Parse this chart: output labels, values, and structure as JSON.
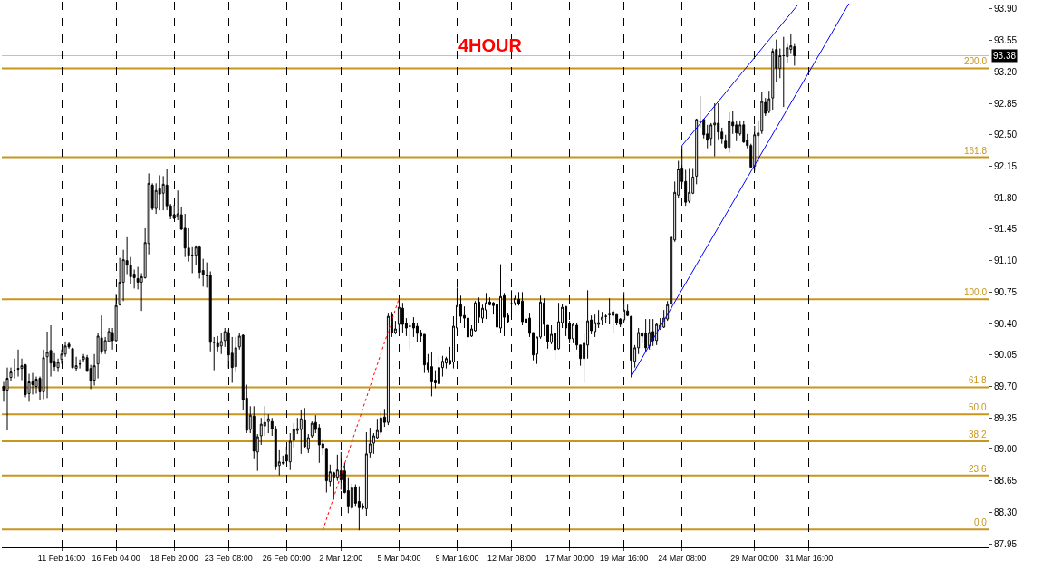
{
  "chart_data": {
    "type": "candlestick",
    "title": "4HOUR",
    "color": "#000000",
    "categories": [
      null,
      null,
      null,
      null,
      null,
      null,
      null,
      null,
      null,
      null,
      null,
      null,
      null,
      null,
      null,
      null,
      "11 Feb 16:00",
      null,
      null,
      null,
      null,
      null,
      null,
      null,
      null,
      null,
      null,
      null,
      null,
      null,
      null,
      "16 Feb 04:00",
      null,
      null,
      null,
      null,
      null,
      null,
      null,
      null,
      null,
      null,
      null,
      null,
      null,
      null,
      null,
      "18 Feb 20:00",
      null,
      null,
      null,
      null,
      null,
      null,
      null,
      null,
      null,
      null,
      null,
      null,
      null,
      null,
      "23 Feb 08:00",
      null,
      null,
      null,
      null,
      null,
      null,
      null,
      null,
      null,
      null,
      null,
      null,
      null,
      null,
      null,
      "26 Feb 00:00",
      null,
      null,
      null,
      null,
      null,
      null,
      null,
      null,
      null,
      null,
      null,
      null,
      null,
      null,
      "2 Mar 12:00",
      null,
      null,
      null,
      null,
      null,
      null,
      null,
      null,
      null,
      null,
      null,
      null,
      null,
      null,
      null,
      "5 Mar 04:00",
      null,
      null,
      null,
      null,
      null,
      null,
      null,
      null,
      null,
      null,
      null,
      null,
      null,
      null,
      null,
      "9 Mar 16:00",
      null,
      null,
      null,
      null,
      null,
      null,
      null,
      null,
      null,
      null,
      null,
      null,
      null,
      null,
      "12 Mar 08:00",
      null,
      null,
      null,
      null,
      null,
      null,
      null,
      null,
      null,
      null,
      null,
      null,
      null,
      null,
      null,
      "17 Mar 00:00",
      null,
      null,
      null,
      null,
      null,
      null,
      null,
      null,
      null,
      null,
      null,
      null,
      null,
      null,
      "19 Mar 16:00",
      null,
      null,
      null,
      null,
      null,
      null,
      null,
      null,
      null,
      null,
      null,
      null,
      null,
      null,
      null,
      "24 Mar 08:00",
      null,
      null,
      null,
      null,
      null,
      null,
      null,
      null,
      null,
      null,
      null,
      null,
      null,
      null,
      null,
      null,
      null,
      null,
      null,
      "29 Mar 00:00",
      null,
      null,
      null,
      null,
      null,
      null,
      null,
      null,
      null,
      null,
      null,
      null,
      null,
      null,
      "31 Mar 16:00",
      null,
      null,
      null,
      null,
      null,
      null,
      null,
      null,
      null,
      null,
      null,
      null,
      null,
      null,
      null,
      null,
      null,
      null,
      null,
      null,
      null,
      null,
      null,
      null,
      null,
      null,
      null,
      null,
      null,
      null,
      null,
      null,
      null,
      null,
      null,
      null,
      null,
      null,
      null,
      null,
      null,
      null,
      null,
      null,
      null,
      null,
      null,
      null,
      null
    ],
    "ohlc": [
      [
        89.7,
        89.75,
        89.53,
        89.65
      ],
      [
        89.66,
        89.91,
        89.21,
        89.79
      ],
      [
        89.8,
        89.91,
        89.76,
        89.86
      ],
      [
        89.88,
        90.01,
        89.79,
        89.88
      ],
      [
        89.89,
        90.11,
        89.81,
        89.9
      ],
      [
        89.9,
        90.01,
        89.77,
        89.93
      ],
      [
        89.94,
        89.95,
        89.58,
        89.61
      ],
      [
        89.62,
        89.84,
        89.53,
        89.75
      ],
      [
        89.75,
        89.85,
        89.61,
        89.72
      ],
      [
        89.7,
        89.81,
        89.62,
        89.78
      ],
      [
        89.79,
        89.81,
        89.55,
        89.64
      ],
      [
        89.64,
        90.11,
        89.56,
        90.02
      ],
      [
        90.03,
        90.31,
        89.57,
        90.08
      ],
      [
        90.1,
        90.38,
        89.81,
        89.96
      ],
      [
        89.98,
        90.07,
        89.87,
        89.92
      ],
      [
        89.91,
        90.01,
        89.86,
        89.97
      ],
      [
        90.0,
        90.11,
        89.95,
        90.06
      ],
      [
        90.06,
        90.2,
        90.03,
        90.15
      ],
      [
        90.17,
        90.19,
        90.12,
        90.14
      ],
      [
        90.12,
        90.13,
        89.9,
        89.91
      ],
      [
        89.9,
        90.03,
        89.87,
        89.93
      ],
      [
        89.95,
        90.0,
        89.9,
        89.95
      ],
      [
        90.0,
        90.06,
        89.97,
        90.03
      ],
      [
        90.02,
        90.05,
        89.86,
        89.87
      ],
      [
        89.9,
        89.94,
        89.67,
        89.76
      ],
      [
        89.77,
        90.06,
        89.71,
        89.93
      ],
      [
        89.95,
        90.3,
        89.79,
        90.26
      ],
      [
        90.24,
        90.49,
        90.06,
        90.09
      ],
      [
        90.1,
        90.25,
        90.06,
        90.21
      ],
      [
        90.2,
        90.35,
        90.19,
        90.31
      ],
      [
        90.3,
        90.35,
        90.11,
        90.21
      ],
      [
        90.21,
        90.72,
        90.19,
        90.6
      ],
      [
        90.61,
        91.13,
        90.6,
        90.86
      ],
      [
        90.86,
        91.22,
        90.65,
        91.11
      ],
      [
        91.1,
        91.36,
        90.95,
        91.05
      ],
      [
        91.05,
        91.14,
        90.84,
        90.92
      ],
      [
        90.95,
        91.0,
        90.79,
        90.91
      ],
      [
        90.9,
        91.03,
        90.78,
        90.86
      ],
      [
        90.86,
        90.96,
        90.54,
        90.92
      ],
      [
        90.91,
        91.46,
        90.9,
        91.3
      ],
      [
        91.29,
        92.07,
        91.17,
        91.96
      ],
      [
        91.94,
        91.96,
        91.66,
        91.68
      ],
      [
        91.68,
        91.96,
        91.62,
        91.88
      ],
      [
        91.9,
        92.05,
        91.66,
        91.84
      ],
      [
        91.85,
        92.04,
        91.66,
        91.95
      ],
      [
        91.94,
        92.12,
        91.66,
        91.71
      ],
      [
        91.71,
        91.73,
        91.56,
        91.6
      ],
      [
        91.61,
        91.72,
        91.56,
        91.57
      ],
      [
        91.59,
        91.88,
        91.55,
        91.62
      ],
      [
        91.61,
        91.7,
        91.44,
        91.45
      ],
      [
        91.46,
        91.62,
        91.14,
        91.24
      ],
      [
        91.24,
        91.46,
        91.09,
        91.16
      ],
      [
        91.16,
        91.25,
        90.96,
        91.16
      ],
      [
        91.16,
        91.27,
        91.05,
        91.25
      ],
      [
        91.25,
        91.27,
        90.9,
        90.97
      ],
      [
        90.99,
        91.12,
        90.81,
        90.94
      ],
      [
        90.93,
        91.08,
        90.8,
        90.93
      ],
      [
        90.94,
        90.98,
        90.09,
        90.19
      ],
      [
        90.19,
        90.25,
        89.88,
        90.19
      ],
      [
        90.18,
        90.26,
        90.09,
        90.14
      ],
      [
        90.15,
        90.29,
        90.06,
        90.2
      ],
      [
        90.21,
        90.35,
        90.14,
        90.31
      ],
      [
        90.3,
        90.33,
        89.9,
        90.05
      ],
      [
        90.07,
        90.25,
        89.74,
        89.91
      ],
      [
        89.92,
        90.25,
        89.86,
        90.13
      ],
      [
        90.14,
        90.3,
        90.11,
        90.26
      ],
      [
        90.27,
        90.28,
        89.44,
        89.55
      ],
      [
        89.57,
        89.72,
        89.18,
        89.21
      ],
      [
        89.22,
        89.48,
        89.18,
        89.38
      ],
      [
        89.37,
        89.48,
        88.89,
        88.98
      ],
      [
        88.97,
        89.17,
        88.76,
        89.14
      ],
      [
        89.15,
        89.35,
        89.05,
        89.28
      ],
      [
        89.26,
        89.48,
        89.15,
        89.3
      ],
      [
        89.31,
        89.39,
        89.18,
        89.34
      ],
      [
        89.31,
        89.35,
        89.15,
        89.23
      ],
      [
        89.23,
        89.26,
        88.77,
        88.81
      ],
      [
        88.82,
        88.99,
        88.71,
        88.86
      ],
      [
        88.85,
        88.93,
        88.83,
        88.85
      ],
      [
        88.94,
        89.03,
        88.86,
        88.87
      ],
      [
        88.86,
        89.18,
        88.77,
        89.09
      ],
      [
        89.1,
        89.29,
        89.01,
        89.22
      ],
      [
        89.21,
        89.35,
        89.17,
        89.23
      ],
      [
        89.22,
        89.44,
        88.95,
        89.34
      ],
      [
        89.33,
        89.46,
        89.01,
        89.03
      ],
      [
        89.0,
        89.17,
        88.96,
        89.13
      ],
      [
        89.15,
        89.31,
        89.13,
        89.29
      ],
      [
        89.3,
        89.38,
        89.18,
        89.22
      ],
      [
        89.24,
        89.28,
        88.85,
        89.05
      ],
      [
        89.06,
        89.12,
        88.94,
        89.01
      ],
      [
        89.0,
        89.01,
        88.52,
        88.65
      ],
      [
        88.64,
        88.83,
        88.59,
        88.75
      ],
      [
        88.74,
        88.75,
        88.44,
        88.68
      ],
      [
        88.68,
        88.94,
        88.65,
        88.77
      ],
      [
        88.76,
        88.97,
        88.55,
        88.66
      ],
      [
        88.76,
        88.85,
        88.51,
        88.52
      ],
      [
        88.54,
        88.68,
        88.29,
        88.36
      ],
      [
        88.35,
        88.62,
        88.33,
        88.57
      ],
      [
        88.58,
        88.61,
        88.36,
        88.4
      ],
      [
        88.42,
        88.59,
        88.1,
        88.35
      ],
      [
        88.37,
        88.4,
        88.33,
        88.35
      ],
      [
        88.34,
        89.19,
        88.26,
        88.95
      ],
      [
        88.96,
        89.24,
        88.91,
        89.06
      ],
      [
        89.07,
        89.18,
        88.95,
        89.15
      ],
      [
        89.13,
        89.34,
        89.11,
        89.21
      ],
      [
        89.19,
        89.42,
        89.16,
        89.35
      ],
      [
        89.36,
        89.45,
        89.25,
        89.3
      ],
      [
        89.3,
        90.51,
        89.27,
        90.48
      ],
      [
        90.5,
        90.53,
        90.25,
        90.3
      ],
      [
        90.3,
        90.43,
        90.28,
        90.34
      ],
      [
        90.39,
        90.63,
        90.31,
        90.58
      ],
      [
        90.57,
        90.63,
        90.3,
        90.39
      ],
      [
        90.4,
        90.46,
        90.26,
        90.35
      ],
      [
        90.37,
        90.42,
        90.11,
        90.37
      ],
      [
        90.4,
        90.47,
        90.25,
        90.35
      ],
      [
        90.37,
        90.41,
        90.19,
        90.29
      ],
      [
        90.3,
        90.33,
        90.19,
        90.26
      ],
      [
        90.28,
        90.28,
        89.85,
        89.94
      ],
      [
        89.96,
        90.06,
        89.85,
        89.89
      ],
      [
        89.92,
        90.08,
        89.59,
        89.75
      ],
      [
        89.77,
        89.88,
        89.68,
        89.74
      ],
      [
        89.73,
        90.03,
        89.72,
        89.91
      ],
      [
        89.91,
        90.04,
        89.81,
        89.98
      ],
      [
        89.96,
        90.03,
        89.9,
        90.01
      ],
      [
        89.99,
        90.14,
        89.94,
        89.95
      ],
      [
        89.97,
        90.48,
        89.9,
        90.37
      ],
      [
        90.35,
        90.8,
        90.33,
        90.6
      ],
      [
        90.61,
        90.71,
        90.4,
        90.48
      ],
      [
        90.49,
        90.59,
        90.35,
        90.46
      ],
      [
        90.46,
        90.5,
        90.17,
        90.25
      ],
      [
        90.26,
        90.38,
        90.25,
        90.34
      ],
      [
        90.32,
        90.65,
        90.31,
        90.63
      ],
      [
        90.64,
        90.69,
        90.41,
        90.47
      ],
      [
        90.46,
        90.61,
        90.4,
        90.57
      ],
      [
        90.55,
        90.74,
        90.45,
        90.63
      ],
      [
        90.64,
        90.69,
        90.6,
        90.61
      ],
      [
        90.63,
        90.64,
        90.5,
        90.6
      ],
      [
        90.61,
        90.65,
        90.12,
        90.36
      ],
      [
        90.35,
        91.06,
        90.3,
        90.7
      ],
      [
        90.71,
        90.74,
        90.26,
        90.47
      ],
      [
        90.49,
        90.52,
        90.4,
        90.42
      ],
      [
        90.62,
        90.77,
        90.51,
        90.62
      ],
      [
        90.63,
        90.71,
        90.6,
        90.68
      ],
      [
        90.67,
        90.75,
        90.6,
        90.62
      ],
      [
        90.65,
        90.75,
        90.38,
        90.42
      ],
      [
        90.41,
        90.47,
        90.31,
        90.45
      ],
      [
        90.46,
        90.51,
        90.25,
        90.29
      ],
      [
        90.3,
        90.3,
        89.99,
        90.05
      ],
      [
        90.06,
        90.25,
        89.95,
        90.25
      ],
      [
        90.25,
        90.71,
        90.23,
        90.64
      ],
      [
        90.63,
        90.68,
        90.26,
        90.39
      ],
      [
        90.38,
        90.38,
        90.12,
        90.2
      ],
      [
        90.19,
        90.38,
        90.17,
        90.28
      ],
      [
        90.29,
        90.29,
        89.99,
        90.11
      ],
      [
        90.12,
        90.63,
        90.11,
        90.42
      ],
      [
        90.41,
        90.62,
        90.35,
        90.58
      ],
      [
        90.59,
        90.59,
        90.26,
        90.35
      ],
      [
        90.4,
        90.43,
        90.18,
        90.23
      ],
      [
        90.23,
        90.4,
        90.18,
        90.39
      ],
      [
        90.38,
        90.41,
        90.11,
        90.16
      ],
      [
        90.16,
        90.16,
        89.93,
        90.01
      ],
      [
        90.01,
        90.3,
        89.74,
        90.18
      ],
      [
        90.16,
        90.77,
        90.01,
        90.43
      ],
      [
        90.44,
        90.49,
        90.28,
        90.32
      ],
      [
        90.31,
        90.5,
        90.25,
        90.41
      ],
      [
        90.39,
        90.55,
        90.35,
        90.41
      ],
      [
        90.44,
        90.53,
        90.38,
        90.47
      ],
      [
        90.48,
        90.5,
        90.4,
        90.48
      ],
      [
        90.5,
        90.68,
        90.39,
        90.5
      ],
      [
        90.49,
        90.55,
        90.29,
        90.53
      ],
      [
        90.5,
        90.5,
        90.38,
        90.41
      ],
      [
        90.45,
        90.46,
        90.36,
        90.39
      ],
      [
        90.44,
        90.75,
        90.41,
        90.55
      ],
      [
        90.54,
        90.61,
        90.48,
        90.49
      ],
      [
        90.48,
        90.48,
        89.8,
        89.99
      ],
      [
        89.98,
        90.16,
        89.91,
        90.13
      ],
      [
        90.13,
        90.35,
        90.06,
        90.3
      ],
      [
        90.29,
        90.31,
        90.18,
        90.26
      ],
      [
        90.29,
        90.45,
        90.08,
        90.13
      ],
      [
        90.15,
        90.45,
        90.11,
        90.3
      ],
      [
        90.31,
        90.45,
        90.15,
        90.21
      ],
      [
        90.21,
        90.41,
        90.16,
        90.39
      ],
      [
        90.34,
        90.46,
        90.33,
        90.38
      ],
      [
        90.36,
        90.55,
        90.35,
        90.46
      ],
      [
        90.45,
        90.65,
        90.43,
        90.61
      ],
      [
        90.62,
        91.38,
        90.55,
        91.36
      ],
      [
        91.33,
        91.98,
        91.31,
        91.86
      ],
      [
        91.83,
        92.21,
        91.8,
        92.12
      ],
      [
        92.13,
        92.38,
        91.95,
        91.98
      ],
      [
        91.98,
        92.11,
        91.71,
        91.75
      ],
      [
        91.76,
        92.13,
        91.74,
        91.86
      ],
      [
        91.85,
        92.13,
        91.84,
        92.03
      ],
      [
        92.04,
        92.68,
        91.95,
        92.67
      ],
      [
        92.65,
        92.93,
        92.58,
        92.65
      ],
      [
        92.67,
        92.68,
        92.46,
        92.5
      ],
      [
        92.51,
        92.61,
        92.35,
        92.44
      ],
      [
        92.46,
        92.63,
        92.38,
        92.61
      ],
      [
        92.61,
        92.85,
        92.26,
        92.63
      ],
      [
        92.63,
        92.85,
        92.45,
        92.53
      ],
      [
        92.53,
        92.58,
        92.4,
        92.46
      ],
      [
        92.43,
        92.5,
        92.34,
        92.36
      ],
      [
        92.36,
        92.75,
        92.3,
        92.65
      ],
      [
        92.64,
        92.76,
        92.51,
        92.6
      ],
      [
        92.61,
        92.66,
        92.43,
        92.52
      ],
      [
        92.51,
        92.66,
        92.49,
        92.61
      ],
      [
        92.61,
        92.66,
        92.41,
        92.42
      ],
      [
        92.44,
        92.51,
        92.35,
        92.38
      ],
      [
        92.38,
        92.4,
        92.14,
        92.14
      ],
      [
        92.15,
        92.6,
        92.1,
        92.5
      ],
      [
        92.49,
        92.65,
        92.2,
        92.52
      ],
      [
        92.54,
        92.98,
        92.51,
        92.87
      ],
      [
        92.86,
        92.91,
        92.71,
        92.74
      ],
      [
        92.76,
        92.99,
        92.74,
        92.9
      ],
      [
        92.91,
        93.46,
        92.78,
        93.43
      ],
      [
        93.45,
        93.56,
        93.09,
        93.24
      ],
      [
        93.24,
        93.46,
        93.13,
        93.38
      ],
      [
        93.38,
        93.59,
        92.81,
        93.38
      ],
      [
        93.37,
        93.51,
        93.3,
        93.47
      ],
      [
        93.45,
        93.62,
        93.4,
        93.49
      ],
      [
        93.48,
        93.51,
        93.27,
        93.38
      ],
      null,
      null,
      null,
      null,
      null,
      null,
      null,
      null,
      null,
      null,
      null,
      null,
      null,
      null,
      null,
      null,
      null,
      null,
      null,
      null,
      null,
      null,
      null,
      null,
      null,
      null,
      null,
      null,
      null,
      null,
      null,
      null,
      null,
      null,
      null,
      null,
      null,
      null,
      null,
      null,
      null,
      null,
      null,
      null,
      null,
      null,
      null,
      null,
      null,
      null,
      null,
      null,
      null
    ],
    "series": [
      {
        "type": "line",
        "color": "#0000ff",
        "line_style": "solid",
        "values": [
          null,
          null,
          null,
          null,
          null,
          null,
          null,
          null,
          null,
          null,
          null,
          null,
          null,
          null,
          null,
          null,
          null,
          null,
          null,
          null,
          null,
          null,
          null,
          null,
          null,
          null,
          null,
          null,
          null,
          null,
          null,
          null,
          null,
          null,
          null,
          null,
          null,
          null,
          null,
          null,
          null,
          null,
          null,
          null,
          null,
          null,
          null,
          null,
          null,
          null,
          null,
          null,
          null,
          null,
          null,
          null,
          null,
          null,
          null,
          null,
          null,
          null,
          null,
          null,
          null,
          null,
          null,
          null,
          null,
          null,
          null,
          null,
          null,
          null,
          null,
          null,
          null,
          null,
          null,
          null,
          null,
          null,
          null,
          null,
          null,
          null,
          null,
          null,
          null,
          null,
          null,
          null,
          null,
          null,
          null,
          null,
          null,
          null,
          null,
          null,
          null,
          null,
          null,
          null,
          null,
          null,
          null,
          null,
          null,
          null,
          null,
          null,
          null,
          null,
          null,
          null,
          null,
          null,
          null,
          null,
          null,
          null,
          null,
          null,
          null,
          null,
          null,
          null,
          null,
          null,
          null,
          null,
          null,
          null,
          null,
          null,
          null,
          null,
          null,
          null,
          null,
          null,
          null,
          null,
          null,
          null,
          null,
          null,
          null,
          null,
          null,
          null,
          null,
          null,
          null,
          null,
          null,
          null,
          null,
          null,
          null,
          null,
          null,
          null,
          null,
          null,
          null,
          null,
          null,
          null,
          null,
          null,
          null,
          89.81,
          null,
          null,
          null,
          null,
          null,
          null,
          null,
          null,
          null,
          null,
          null,
          null,
          null,
          null,
          null,
          null,
          null,
          null,
          null,
          null,
          null,
          null,
          null,
          null,
          null,
          null,
          null,
          null,
          null,
          null,
          null,
          null,
          null,
          null,
          null,
          null,
          null,
          null,
          null,
          null,
          null,
          null,
          null,
          null,
          null,
          null,
          null,
          null,
          null,
          null,
          null,
          null,
          null,
          null,
          null,
          null,
          null,
          null,
          null,
          93.96,
          null,
          null,
          null,
          null,
          null,
          null,
          null,
          null,
          null,
          null,
          null,
          null,
          null,
          null,
          null,
          null,
          null,
          null,
          null,
          null,
          null,
          null,
          null,
          null,
          null,
          null,
          null,
          null,
          null,
          null,
          null,
          null,
          null,
          null,
          null,
          null,
          null,
          null
        ]
      },
      {
        "type": "line",
        "color": "#0000ff",
        "line_style": "solid",
        "values": [
          null,
          null,
          null,
          null,
          null,
          null,
          null,
          null,
          null,
          null,
          null,
          null,
          null,
          null,
          null,
          null,
          null,
          null,
          null,
          null,
          null,
          null,
          null,
          null,
          null,
          null,
          null,
          null,
          null,
          null,
          null,
          null,
          null,
          null,
          null,
          null,
          null,
          null,
          null,
          null,
          null,
          null,
          null,
          null,
          null,
          null,
          null,
          null,
          null,
          null,
          null,
          null,
          null,
          null,
          null,
          null,
          null,
          null,
          null,
          null,
          null,
          null,
          null,
          null,
          null,
          null,
          null,
          null,
          null,
          null,
          null,
          null,
          null,
          null,
          null,
          null,
          null,
          null,
          null,
          null,
          null,
          null,
          null,
          null,
          null,
          null,
          null,
          null,
          null,
          null,
          null,
          null,
          null,
          null,
          null,
          null,
          null,
          null,
          null,
          null,
          null,
          null,
          null,
          null,
          null,
          null,
          null,
          null,
          null,
          null,
          null,
          null,
          null,
          null,
          null,
          null,
          null,
          null,
          null,
          null,
          null,
          null,
          null,
          null,
          null,
          null,
          null,
          null,
          null,
          null,
          null,
          null,
          null,
          null,
          null,
          null,
          null,
          null,
          null,
          null,
          null,
          null,
          null,
          null,
          null,
          null,
          null,
          null,
          null,
          null,
          null,
          null,
          null,
          null,
          null,
          null,
          null,
          null,
          null,
          null,
          null,
          null,
          null,
          null,
          null,
          null,
          null,
          null,
          null,
          null,
          null,
          null,
          null,
          null,
          null,
          null,
          null,
          null,
          null,
          null,
          null,
          null,
          null,
          null,
          null,
          null,
          null,
          92.38,
          null,
          null,
          null,
          null,
          null,
          null,
          null,
          null,
          null,
          null,
          null,
          null,
          null,
          null,
          null,
          null,
          null,
          null,
          null,
          null,
          null,
          null,
          null,
          null,
          null,
          null,
          null,
          null,
          null,
          null,
          null,
          93.95,
          null,
          null,
          null,
          null,
          null,
          null,
          null,
          null,
          null,
          null,
          null,
          null,
          null,
          null,
          null,
          null,
          null,
          null,
          null,
          null,
          null,
          null,
          null,
          null,
          null,
          null,
          null,
          null,
          null,
          null,
          null,
          null,
          null,
          null,
          null,
          null,
          null,
          null,
          null,
          null,
          null,
          null,
          null,
          null,
          null,
          null,
          null,
          null,
          null,
          null,
          null,
          null
        ]
      },
      {
        "type": "line",
        "color": "#ff0000",
        "line_style": "dotted",
        "values": [
          null,
          null,
          null,
          null,
          null,
          null,
          null,
          null,
          null,
          null,
          null,
          null,
          null,
          null,
          null,
          null,
          null,
          null,
          null,
          null,
          null,
          null,
          null,
          null,
          null,
          null,
          null,
          null,
          null,
          null,
          null,
          null,
          null,
          null,
          null,
          null,
          null,
          null,
          null,
          null,
          null,
          null,
          null,
          null,
          null,
          null,
          null,
          null,
          null,
          null,
          null,
          null,
          null,
          null,
          null,
          null,
          null,
          null,
          null,
          null,
          null,
          null,
          null,
          null,
          null,
          null,
          null,
          null,
          null,
          null,
          null,
          null,
          null,
          null,
          null,
          null,
          null,
          null,
          null,
          null,
          null,
          null,
          null,
          null,
          null,
          null,
          null,
          null,
          88.1,
          null,
          null,
          null,
          null,
          null,
          null,
          null,
          null,
          null,
          null,
          null,
          null,
          null,
          null,
          null,
          null,
          null,
          null,
          null,
          null,
          90.68,
          null,
          null,
          null,
          null,
          null,
          null,
          null,
          null,
          null,
          null,
          null,
          null,
          null,
          null,
          null,
          null,
          null,
          null,
          null,
          null,
          null,
          null,
          null,
          null,
          null,
          null,
          null,
          null,
          null,
          null,
          null,
          null,
          null,
          null,
          null,
          null,
          null,
          null,
          null,
          null,
          null,
          null,
          null,
          null,
          null,
          null,
          null,
          null,
          null,
          null,
          null,
          null,
          null,
          null,
          null,
          null,
          null,
          null,
          null,
          null,
          null,
          null,
          null,
          null,
          null,
          null,
          null,
          null,
          null,
          null,
          null,
          null,
          null,
          null,
          null,
          null,
          null,
          null,
          null,
          null,
          null,
          null,
          null,
          null,
          null,
          null,
          null,
          null,
          null,
          null,
          null,
          null,
          null,
          null,
          null,
          null,
          null,
          null,
          null,
          null,
          null,
          null,
          null,
          null,
          null,
          null,
          null,
          null,
          null,
          null,
          null,
          null,
          null,
          null,
          null,
          null,
          null,
          null,
          null,
          null,
          null,
          null,
          null,
          null,
          null,
          null,
          null,
          null,
          null,
          null,
          null,
          null,
          null,
          null,
          null,
          null,
          null,
          null,
          null,
          null,
          null,
          null,
          null,
          null,
          null,
          null,
          null,
          null,
          null,
          null,
          null,
          null,
          null,
          null,
          null,
          null,
          null,
          null,
          null,
          null,
          null,
          null
        ]
      }
    ],
    "ref_lines": [
      {
        "axis": "y",
        "value": 93.38,
        "label": "93.38",
        "color": "#c0c0c0"
      },
      {
        "axis": "y",
        "value": 93.24,
        "color": "#c8961e"
      },
      {
        "axis": "y",
        "value": 92.25,
        "color": "#c8961e"
      },
      {
        "axis": "y",
        "value": 90.67,
        "color": "#c8961e"
      },
      {
        "axis": "y",
        "value": 89.69,
        "color": "#c8961e"
      },
      {
        "axis": "y",
        "value": 89.39,
        "color": "#c8961e"
      },
      {
        "axis": "y",
        "value": 89.09,
        "color": "#c8961e"
      },
      {
        "axis": "y",
        "value": 88.71,
        "color": "#c8961e"
      },
      {
        "axis": "y",
        "value": 88.11,
        "color": "#c8961e"
      }
    ],
    "annotations": [
      {
        "text": "200.0",
        "y": 93.24
      },
      {
        "text": "161.8",
        "y": 92.25
      },
      {
        "text": "100.0",
        "y": 90.67
      },
      {
        "text": "61.8",
        "y": 89.69
      },
      {
        "text": "50.0",
        "y": 89.39
      },
      {
        "text": "38.2",
        "y": 89.09
      },
      {
        "text": "23.6",
        "y": 88.71
      },
      {
        "text": "0.0",
        "y": 88.11
      }
    ],
    "ylim": [
      87.91,
      93.98
    ],
    "yticks": [
      {
        "value": 87.95,
        "label": "87.95"
      },
      {
        "value": 88.3,
        "label": "88.30"
      },
      {
        "value": 88.65,
        "label": "88.65"
      },
      {
        "value": 89.0,
        "label": "89.00"
      },
      {
        "value": 89.35,
        "label": "89.35"
      },
      {
        "value": 89.7,
        "label": "89.70"
      },
      {
        "value": 90.05,
        "label": "90.05"
      },
      {
        "value": 90.4,
        "label": "90.40"
      },
      {
        "value": 90.75,
        "label": "90.75"
      },
      {
        "value": 91.1,
        "label": "91.10"
      },
      {
        "value": 91.45,
        "label": "91.45"
      },
      {
        "value": 91.8,
        "label": "91.80"
      },
      {
        "value": 92.15,
        "label": "92.15"
      },
      {
        "value": 92.5,
        "label": "92.50"
      },
      {
        "value": 92.85,
        "label": "92.85"
      },
      {
        "value": 93.2,
        "label": "93.20"
      },
      {
        "value": 93.55,
        "label": "93.55"
      },
      {
        "value": 93.9,
        "label": "93.90"
      }
    ],
    "grid": "x"
  }
}
